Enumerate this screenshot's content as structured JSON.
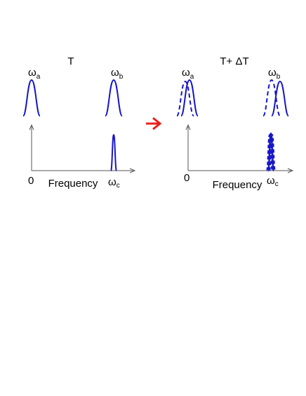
{
  "left_panel": {
    "title": "T",
    "omega_a": {
      "symbol": "ω",
      "sub": "a"
    },
    "omega_b": {
      "symbol": "ω",
      "sub": "b"
    },
    "omega_c": {
      "symbol": "ω",
      "sub": "c"
    },
    "origin_label": "0",
    "x_axis_label": "Frequency"
  },
  "right_panel": {
    "title": "T+ ΔT",
    "omega_a": {
      "symbol": "ω",
      "sub": "a"
    },
    "omega_b": {
      "symbol": "ω",
      "sub": "b"
    },
    "omega_c": {
      "symbol": "ω",
      "sub": "c"
    },
    "origin_label": "0",
    "x_axis_label": "Frequency"
  },
  "colors": {
    "curve": "#1616c8",
    "arrow": "#e8201e",
    "axis": "#555555"
  }
}
